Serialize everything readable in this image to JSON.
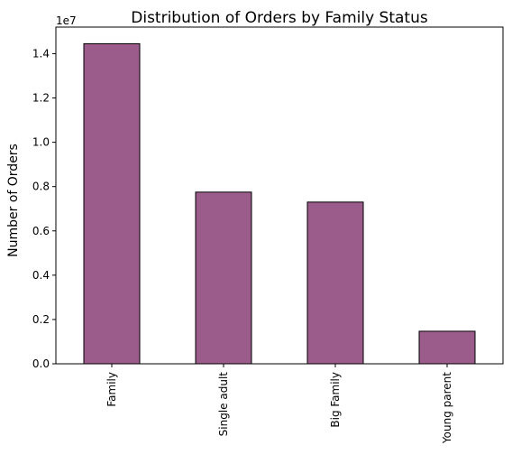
{
  "chart_data": {
    "type": "bar",
    "title": "Distribution of Orders by Family Status",
    "xlabel": "",
    "ylabel": "Number of Orders",
    "y_offset_label": "1e7",
    "y_scale": 10000000,
    "categories": [
      "Family",
      "Single adult",
      "Big Family",
      "Young parent"
    ],
    "values": [
      14450000,
      7750000,
      7300000,
      1470000
    ],
    "ylim": [
      0,
      15200000
    ],
    "yticks": [
      0,
      2000000,
      4000000,
      6000000,
      8000000,
      10000000,
      12000000,
      14000000
    ],
    "ytick_labels": [
      "0.0",
      "0.2",
      "0.4",
      "0.6",
      "0.8",
      "1.0",
      "1.2",
      "1.4"
    ],
    "bar_color": "#9c5c8b",
    "edge_color": "#000000",
    "grid": false,
    "legend": "none"
  }
}
